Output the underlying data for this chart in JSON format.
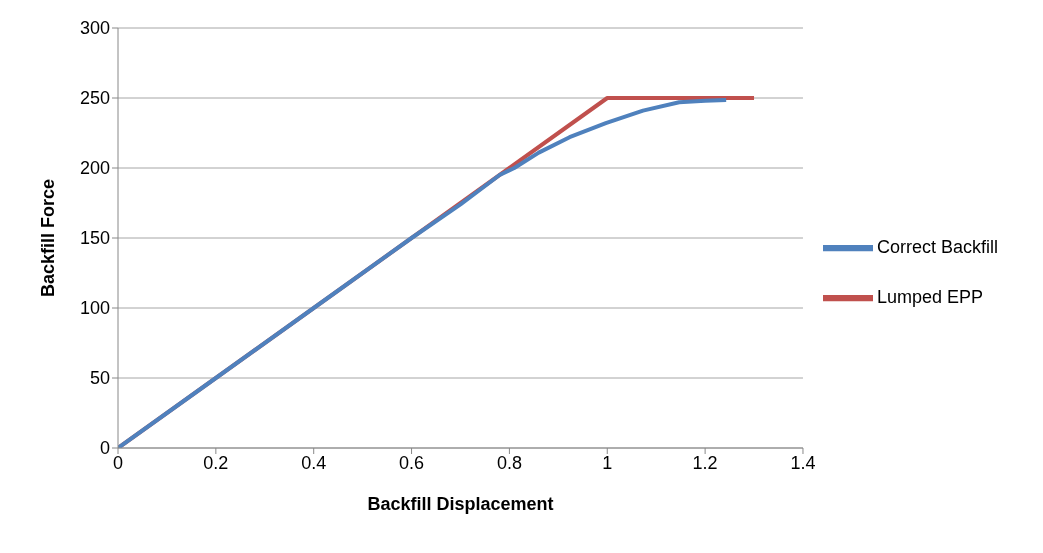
{
  "chart_data": {
    "type": "line",
    "xlabel": "Backfill Displacement",
    "ylabel": "Backfill Force",
    "xlim": [
      0,
      1.4
    ],
    "xticks": [
      0,
      0.2,
      0.4,
      0.6,
      0.8,
      1,
      1.2,
      1.4
    ],
    "ylim": [
      0,
      300
    ],
    "yticks": [
      0,
      50,
      100,
      150,
      200,
      250,
      300
    ],
    "grid": "y",
    "legend": "right",
    "marker": "none",
    "line_style": "solid",
    "series": [
      {
        "name": "Correct Backfill",
        "color": "#4f81bd",
        "x": [
          0,
          0.2,
          0.4,
          0.6,
          0.7,
          0.78,
          0.81,
          0.86,
          0.923,
          0.997,
          1.073,
          1.147,
          1.2,
          1.243
        ],
        "values": [
          0,
          50,
          100,
          150,
          174,
          195,
          200,
          211,
          222,
          232,
          241,
          247,
          248,
          248.5
        ]
      },
      {
        "name": "Lumped EPP",
        "color": "#c0504d",
        "x": [
          0,
          1,
          1.3
        ],
        "values": [
          0,
          250,
          250
        ]
      }
    ]
  }
}
